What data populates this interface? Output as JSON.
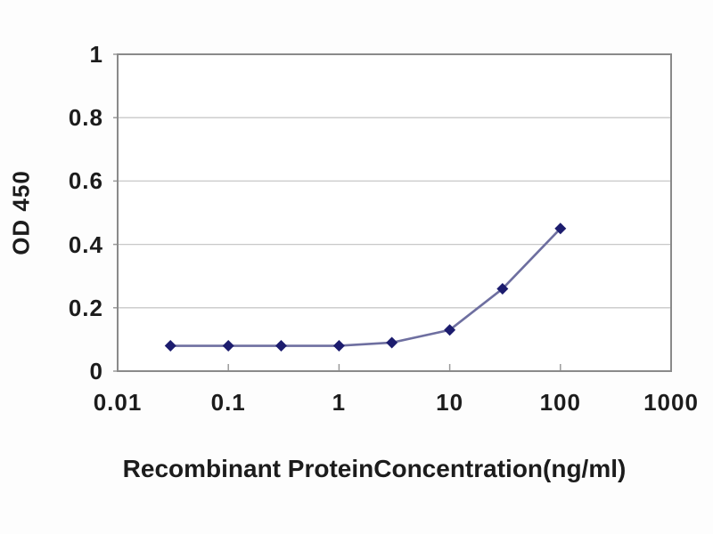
{
  "chart_data": {
    "type": "line",
    "title": "",
    "xlabel": "Recombinant ProteinConcentration(ng/ml)",
    "ylabel": "OD 450",
    "x_scale": "log",
    "xlim": [
      0.01,
      1000
    ],
    "ylim": [
      0,
      1
    ],
    "xticks": [
      0.01,
      0.1,
      1,
      10,
      100,
      1000
    ],
    "xtick_labels": [
      "0.01",
      "0.1",
      "1",
      "10",
      "100",
      "1000"
    ],
    "yticks": [
      0,
      0.2,
      0.4,
      0.6,
      0.8,
      1
    ],
    "ytick_labels": [
      "0",
      "0.2",
      "0.4",
      "0.6",
      "0.8",
      "1"
    ],
    "grid": "horizontal",
    "legend": "none",
    "series": [
      {
        "name": "OD450",
        "marker": "diamond",
        "line_color": "#6e6fa0",
        "marker_color": "#1c1c6e",
        "x": [
          0.03,
          0.1,
          0.3,
          1,
          3,
          10,
          30,
          100
        ],
        "y": [
          0.08,
          0.08,
          0.08,
          0.08,
          0.09,
          0.13,
          0.26,
          0.45
        ]
      }
    ],
    "colors": {
      "plot_border": "#8a8a8a",
      "gridline": "#c8c8c8",
      "tick_mark": "#9a9a9a",
      "text": "#1c1c1c",
      "plot_background": "#ffffff"
    }
  }
}
